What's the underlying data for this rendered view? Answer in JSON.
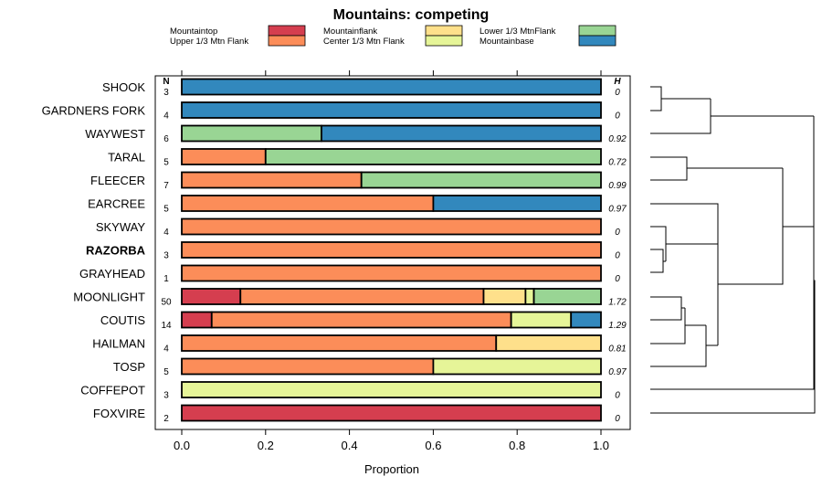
{
  "chart_data": {
    "type": "bar",
    "orientation": "horizontal-stacked",
    "title": "Mountains: competing",
    "xlabel": "Proportion",
    "xlim": [
      0,
      1
    ],
    "xticks": [
      "0.0",
      "0.2",
      "0.4",
      "0.6",
      "0.8",
      "1.0"
    ],
    "n_header": "N",
    "h_header": "H",
    "legend_position": "top",
    "series": [
      {
        "name": "Mountaintop",
        "color": "#d53e4f"
      },
      {
        "name": "Upper 1/3 Mtn Flank",
        "color": "#fc8d59"
      },
      {
        "name": "Mountainflank",
        "color": "#fee08b"
      },
      {
        "name": "Center 1/3 Mtn Flank",
        "color": "#e6f598"
      },
      {
        "name": "Lower 1/3 MtnFlank",
        "color": "#99d594"
      },
      {
        "name": "Mountainbase",
        "color": "#3288bd"
      }
    ],
    "categories": [
      {
        "label": "SHOOK",
        "n": "3",
        "h": "0",
        "counts": [
          0,
          0,
          0,
          0,
          0,
          3
        ]
      },
      {
        "label": "GARDNERS FORK",
        "n": "4",
        "h": "0",
        "counts": [
          0,
          0,
          0,
          0,
          0,
          4
        ]
      },
      {
        "label": "WAYWEST",
        "n": "6",
        "h": "0.92",
        "counts": [
          0,
          0,
          0,
          0,
          2,
          4
        ]
      },
      {
        "label": "TARAL",
        "n": "5",
        "h": "0.72",
        "counts": [
          0,
          1,
          0,
          0,
          4,
          0
        ]
      },
      {
        "label": "FLEECER",
        "n": "7",
        "h": "0.99",
        "counts": [
          0,
          3,
          0,
          0,
          4,
          0
        ]
      },
      {
        "label": "EARCREE",
        "n": "5",
        "h": "0.97",
        "counts": [
          0,
          3,
          0,
          0,
          0,
          2
        ]
      },
      {
        "label": "SKYWAY",
        "n": "4",
        "h": "0",
        "counts": [
          0,
          4,
          0,
          0,
          0,
          0
        ]
      },
      {
        "label": "RAZORBA",
        "n": "3",
        "h": "0",
        "counts": [
          0,
          3,
          0,
          0,
          0,
          0
        ],
        "bold": true
      },
      {
        "label": "GRAYHEAD",
        "n": "1",
        "h": "0",
        "counts": [
          0,
          1,
          0,
          0,
          0,
          0
        ]
      },
      {
        "label": "MOONLIGHT",
        "n": "50",
        "h": "1.72",
        "counts": [
          7,
          29,
          5,
          1,
          8,
          0
        ]
      },
      {
        "label": "COUTIS",
        "n": "14",
        "h": "1.29",
        "counts": [
          1,
          10,
          0,
          2,
          0,
          1
        ]
      },
      {
        "label": "HAILMAN",
        "n": "4",
        "h": "0.81",
        "counts": [
          0,
          3,
          1,
          0,
          0,
          0
        ]
      },
      {
        "label": "TOSP",
        "n": "5",
        "h": "0.97",
        "counts": [
          0,
          3,
          0,
          2,
          0,
          0
        ]
      },
      {
        "label": "COFFEPOT",
        "n": "3",
        "h": "0",
        "counts": [
          0,
          0,
          0,
          3,
          0,
          0
        ]
      },
      {
        "label": "FOXVIRE",
        "n": "2",
        "h": "0",
        "counts": [
          2,
          0,
          0,
          0,
          0,
          0
        ]
      }
    ]
  }
}
